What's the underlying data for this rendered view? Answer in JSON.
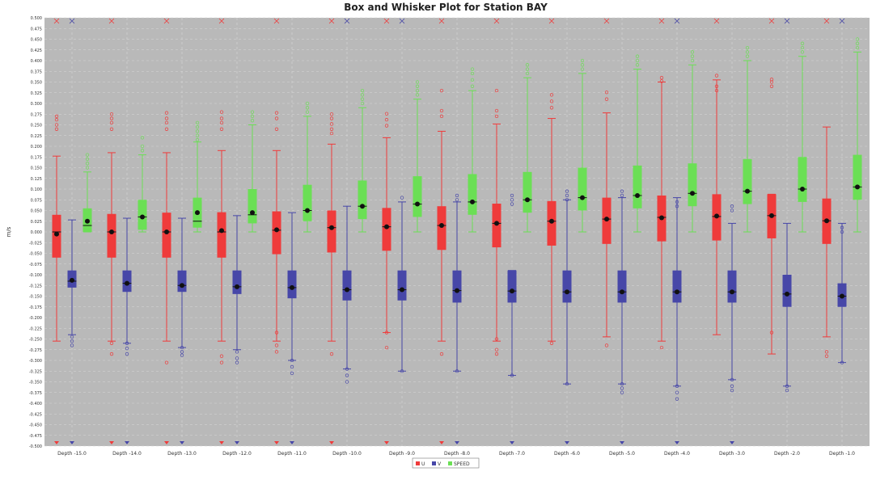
{
  "chart_data": {
    "type": "box",
    "title": "Box and Whisker Plot for Station BAY",
    "ylabel": "m/s",
    "xlabel": "",
    "ylim": [
      -0.5,
      0.5
    ],
    "y_ticks": [
      -0.5,
      -0.475,
      -0.45,
      -0.425,
      -0.4,
      -0.375,
      -0.35,
      -0.325,
      -0.3,
      -0.275,
      -0.25,
      -0.225,
      -0.2,
      -0.175,
      -0.15,
      -0.125,
      -0.1,
      -0.075,
      -0.05,
      -0.025,
      0.0,
      0.025,
      0.05,
      0.075,
      0.1,
      0.125,
      0.15,
      0.175,
      0.2,
      0.225,
      0.25,
      0.275,
      0.3,
      0.325,
      0.35,
      0.375,
      0.4,
      0.425,
      0.45,
      0.475,
      0.5
    ],
    "grid": true,
    "legend_position": "bottom",
    "categories": [
      "Depth -15.0",
      "Depth -14.0",
      "Depth -13.0",
      "Depth -12.0",
      "Depth -11.0",
      "Depth -10.0",
      "Depth -9.0",
      "Depth -8.0",
      "Depth -7.0",
      "Depth -6.0",
      "Depth -5.0",
      "Depth -4.0",
      "Depth -3.0",
      "Depth -2.0",
      "Depth -1.0"
    ],
    "series": [
      {
        "name": "U",
        "color": "#ef3b3b",
        "boxes": [
          {
            "q1": -0.06,
            "median": 0.0,
            "q3": 0.04,
            "mean": -0.005,
            "whisker_low": -0.255,
            "whisker_high": 0.177,
            "outliers": [
              0.24,
              0.25,
              0.262,
              0.27,
              0.5,
              -0.5
            ]
          },
          {
            "q1": -0.06,
            "median": 0.0,
            "q3": 0.042,
            "mean": 0.0,
            "whisker_low": -0.255,
            "whisker_high": 0.185,
            "outliers": [
              0.24,
              0.255,
              0.265,
              0.275,
              -0.26,
              -0.285,
              0.5,
              -0.5
            ]
          },
          {
            "q1": -0.06,
            "median": 0.0,
            "q3": 0.045,
            "mean": 0.0,
            "whisker_low": -0.255,
            "whisker_high": 0.185,
            "outliers": [
              0.24,
              0.255,
              0.265,
              0.278,
              -0.305,
              0.5,
              -0.5
            ]
          },
          {
            "q1": -0.06,
            "median": 0.0,
            "q3": 0.046,
            "mean": 0.003,
            "whisker_low": -0.255,
            "whisker_high": 0.19,
            "outliers": [
              0.24,
              0.255,
              0.265,
              0.28,
              -0.29,
              -0.305,
              0.5,
              -0.5
            ]
          },
          {
            "q1": -0.052,
            "median": 0.004,
            "q3": 0.048,
            "mean": 0.005,
            "whisker_low": -0.255,
            "whisker_high": 0.19,
            "outliers": [
              0.24,
              0.265,
              0.278,
              -0.235,
              -0.265,
              -0.28,
              0.5,
              -0.5
            ]
          },
          {
            "q1": -0.048,
            "median": 0.01,
            "q3": 0.05,
            "mean": 0.01,
            "whisker_low": -0.255,
            "whisker_high": 0.205,
            "outliers": [
              0.23,
              0.24,
              0.252,
              0.265,
              0.275,
              -0.285,
              0.5,
              -0.5
            ]
          },
          {
            "q1": -0.044,
            "median": 0.012,
            "q3": 0.056,
            "mean": 0.012,
            "whisker_low": -0.235,
            "whisker_high": 0.22,
            "outliers": [
              0.248,
              0.262,
              0.276,
              -0.235,
              -0.27,
              0.5,
              -0.5
            ]
          },
          {
            "q1": -0.042,
            "median": 0.015,
            "q3": 0.06,
            "mean": 0.015,
            "whisker_low": -0.255,
            "whisker_high": 0.235,
            "outliers": [
              0.27,
              0.283,
              0.33,
              -0.285,
              0.5,
              -0.5
            ]
          },
          {
            "q1": -0.036,
            "median": 0.02,
            "q3": 0.066,
            "mean": 0.02,
            "whisker_low": -0.255,
            "whisker_high": 0.252,
            "outliers": [
              0.27,
              0.283,
              0.33,
              -0.25,
              -0.275,
              -0.285,
              0.5
            ]
          },
          {
            "q1": -0.032,
            "median": 0.025,
            "q3": 0.072,
            "mean": 0.025,
            "whisker_low": -0.255,
            "whisker_high": 0.265,
            "outliers": [
              0.29,
              0.305,
              0.32,
              -0.26,
              0.5
            ]
          },
          {
            "q1": -0.028,
            "median": 0.03,
            "q3": 0.08,
            "mean": 0.03,
            "whisker_low": -0.245,
            "whisker_high": 0.278,
            "outliers": [
              0.31,
              0.326,
              -0.265,
              0.5
            ]
          },
          {
            "q1": -0.022,
            "median": 0.034,
            "q3": 0.085,
            "mean": 0.033,
            "whisker_low": -0.255,
            "whisker_high": 0.35,
            "outliers": [
              0.352,
              0.36,
              -0.27,
              0.5
            ]
          },
          {
            "q1": -0.02,
            "median": 0.036,
            "q3": 0.088,
            "mean": 0.037,
            "whisker_low": -0.24,
            "whisker_high": 0.355,
            "outliers": [
              0.33,
              0.34,
              0.365,
              0.5
            ]
          },
          {
            "q1": -0.015,
            "median": 0.038,
            "q3": 0.088,
            "mean": 0.038,
            "whisker_low": -0.285,
            "whisker_high": 0.088,
            "outliers": [
              0.34,
              0.35,
              0.356,
              -0.235,
              0.5
            ]
          },
          {
            "q1": -0.028,
            "median": 0.026,
            "q3": 0.078,
            "mean": 0.026,
            "whisker_low": -0.245,
            "whisker_high": 0.245,
            "outliers": [
              -0.28,
              -0.29,
              0.5
            ]
          }
        ]
      },
      {
        "name": "V",
        "color": "#4747a8",
        "boxes": [
          {
            "q1": -0.13,
            "median": -0.115,
            "q3": -0.09,
            "mean": -0.113,
            "whisker_low": -0.24,
            "whisker_high": 0.028,
            "outliers": [
              -0.245,
              -0.255,
              -0.265,
              -0.5,
              0.5
            ]
          },
          {
            "q1": -0.14,
            "median": -0.12,
            "q3": -0.09,
            "mean": -0.12,
            "whisker_low": -0.26,
            "whisker_high": 0.032,
            "outliers": [
              -0.26,
              -0.272,
              -0.285,
              -0.5
            ]
          },
          {
            "q1": -0.14,
            "median": -0.125,
            "q3": -0.09,
            "mean": -0.125,
            "whisker_low": -0.27,
            "whisker_high": 0.032,
            "outliers": [
              -0.27,
              -0.28,
              -0.288,
              -0.5
            ]
          },
          {
            "q1": -0.145,
            "median": -0.128,
            "q3": -0.09,
            "mean": -0.128,
            "whisker_low": -0.275,
            "whisker_high": 0.038,
            "outliers": [
              -0.28,
              -0.295,
              -0.305,
              -0.5
            ]
          },
          {
            "q1": -0.155,
            "median": -0.13,
            "q3": -0.09,
            "mean": -0.13,
            "whisker_low": -0.3,
            "whisker_high": 0.045,
            "outliers": [
              -0.3,
              -0.315,
              -0.33,
              -0.5
            ]
          },
          {
            "q1": -0.16,
            "median": -0.135,
            "q3": -0.09,
            "mean": -0.135,
            "whisker_low": -0.32,
            "whisker_high": 0.06,
            "outliers": [
              -0.32,
              -0.335,
              -0.35,
              0.5
            ]
          },
          {
            "q1": -0.16,
            "median": -0.135,
            "q3": -0.09,
            "mean": -0.135,
            "whisker_low": -0.325,
            "whisker_high": 0.07,
            "outliers": [
              -0.325,
              0.08,
              0.5
            ]
          },
          {
            "q1": -0.165,
            "median": -0.137,
            "q3": -0.09,
            "mean": -0.137,
            "whisker_low": -0.325,
            "whisker_high": 0.07,
            "outliers": [
              -0.325,
              0.075,
              0.085,
              -0.5
            ]
          },
          {
            "q1": -0.165,
            "median": -0.138,
            "q3": -0.09,
            "mean": -0.138,
            "whisker_low": -0.335,
            "whisker_high": -0.09,
            "outliers": [
              -0.335,
              0.065,
              0.075,
              0.085,
              -0.5
            ]
          },
          {
            "q1": -0.165,
            "median": -0.14,
            "q3": -0.09,
            "mean": -0.14,
            "whisker_low": -0.355,
            "whisker_high": 0.075,
            "outliers": [
              -0.355,
              0.075,
              0.085,
              0.095,
              -0.5
            ]
          },
          {
            "q1": -0.165,
            "median": -0.14,
            "q3": -0.09,
            "mean": -0.14,
            "whisker_low": -0.355,
            "whisker_high": 0.08,
            "outliers": [
              -0.355,
              -0.365,
              -0.375,
              0.085,
              0.095,
              -0.5
            ]
          },
          {
            "q1": -0.165,
            "median": -0.14,
            "q3": -0.09,
            "mean": -0.14,
            "whisker_low": -0.36,
            "whisker_high": 0.08,
            "outliers": [
              -0.36,
              -0.375,
              -0.39,
              0.06,
              0.07,
              -0.5,
              0.5
            ]
          },
          {
            "q1": -0.165,
            "median": -0.14,
            "q3": -0.09,
            "mean": -0.14,
            "whisker_low": -0.345,
            "whisker_high": 0.02,
            "outliers": [
              -0.345,
              -0.36,
              -0.37,
              0.05,
              0.06,
              -0.5
            ]
          },
          {
            "q1": -0.175,
            "median": -0.145,
            "q3": -0.1,
            "mean": -0.145,
            "whisker_low": -0.36,
            "whisker_high": 0.02,
            "outliers": [
              -0.36,
              -0.37,
              0.5
            ]
          },
          {
            "q1": -0.175,
            "median": -0.15,
            "q3": -0.12,
            "mean": -0.15,
            "whisker_low": -0.305,
            "whisker_high": 0.02,
            "outliers": [
              -0.305,
              0.0,
              0.01,
              0.5
            ]
          }
        ]
      },
      {
        "name": "SPEED",
        "color": "#6bdf55",
        "boxes": [
          {
            "q1": 0.0,
            "median": 0.015,
            "q3": 0.055,
            "mean": 0.025,
            "whisker_low": 0.0,
            "whisker_high": 0.14,
            "outliers": [
              0.15,
              0.16,
              0.17,
              0.18
            ]
          },
          {
            "q1": 0.005,
            "median": 0.035,
            "q3": 0.075,
            "mean": 0.035,
            "whisker_low": 0.0,
            "whisker_high": 0.18,
            "outliers": [
              0.19,
              0.2,
              0.22
            ]
          },
          {
            "q1": 0.01,
            "median": 0.025,
            "q3": 0.08,
            "mean": 0.045,
            "whisker_low": 0.0,
            "whisker_high": 0.21,
            "outliers": [
              0.215,
              0.225,
              0.235,
              0.245,
              0.255
            ]
          },
          {
            "q1": 0.02,
            "median": 0.04,
            "q3": 0.1,
            "mean": 0.045,
            "whisker_low": 0.0,
            "whisker_high": 0.25,
            "outliers": [
              0.26,
              0.27,
              0.28
            ]
          },
          {
            "q1": 0.025,
            "median": 0.05,
            "q3": 0.11,
            "mean": 0.05,
            "whisker_low": 0.0,
            "whisker_high": 0.27,
            "outliers": [
              0.28,
              0.29,
              0.3
            ]
          },
          {
            "q1": 0.03,
            "median": 0.06,
            "q3": 0.12,
            "mean": 0.06,
            "whisker_low": 0.0,
            "whisker_high": 0.29,
            "outliers": [
              0.3,
              0.31,
              0.32,
              0.33
            ]
          },
          {
            "q1": 0.035,
            "median": 0.065,
            "q3": 0.13,
            "mean": 0.065,
            "whisker_low": 0.0,
            "whisker_high": 0.31,
            "outliers": [
              0.32,
              0.33,
              0.34,
              0.35
            ]
          },
          {
            "q1": 0.04,
            "median": 0.07,
            "q3": 0.135,
            "mean": 0.07,
            "whisker_low": 0.0,
            "whisker_high": 0.33,
            "outliers": [
              0.34,
              0.355,
              0.37,
              0.38
            ]
          },
          {
            "q1": 0.045,
            "median": 0.075,
            "q3": 0.14,
            "mean": 0.075,
            "whisker_low": 0.0,
            "whisker_high": 0.36,
            "outliers": [
              0.37,
              0.38,
              0.39
            ]
          },
          {
            "q1": 0.05,
            "median": 0.08,
            "q3": 0.15,
            "mean": 0.08,
            "whisker_low": 0.0,
            "whisker_high": 0.37,
            "outliers": [
              0.38,
              0.39,
              0.4
            ]
          },
          {
            "q1": 0.055,
            "median": 0.085,
            "q3": 0.155,
            "mean": 0.085,
            "whisker_low": 0.0,
            "whisker_high": 0.38,
            "outliers": [
              0.39,
              0.4,
              0.41
            ]
          },
          {
            "q1": 0.06,
            "median": 0.09,
            "q3": 0.16,
            "mean": 0.09,
            "whisker_low": 0.0,
            "whisker_high": 0.39,
            "outliers": [
              0.4,
              0.41,
              0.42
            ]
          },
          {
            "q1": 0.065,
            "median": 0.095,
            "q3": 0.17,
            "mean": 0.095,
            "whisker_low": 0.0,
            "whisker_high": 0.4,
            "outliers": [
              0.41,
              0.42,
              0.43
            ]
          },
          {
            "q1": 0.07,
            "median": 0.1,
            "q3": 0.175,
            "mean": 0.1,
            "whisker_low": 0.0,
            "whisker_high": 0.41,
            "outliers": [
              0.42,
              0.43,
              0.44
            ]
          },
          {
            "q1": 0.075,
            "median": 0.105,
            "q3": 0.18,
            "mean": 0.105,
            "whisker_low": 0.0,
            "whisker_high": 0.42,
            "outliers": [
              0.43,
              0.44,
              0.45
            ]
          }
        ]
      }
    ]
  }
}
